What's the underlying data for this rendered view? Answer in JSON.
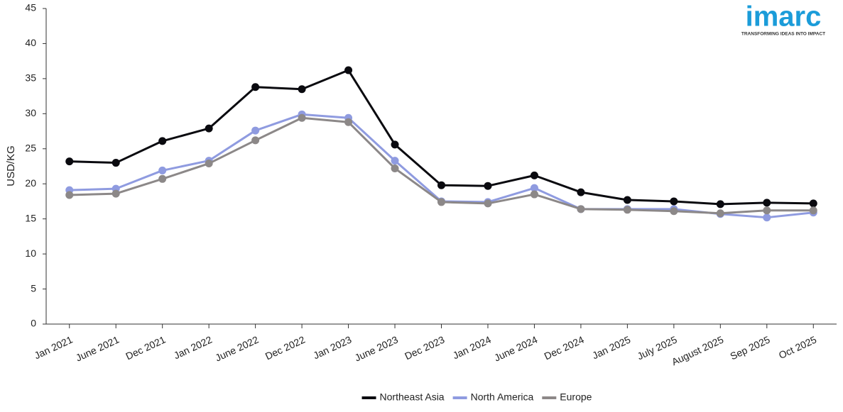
{
  "chart_data": {
    "type": "line",
    "y_label": "USD/KG",
    "logo": {
      "name": "imarc",
      "tagline": "TRANSFORMING IDEAS INTO IMPACT"
    },
    "categories": [
      "Jan 2021",
      "June 2021",
      "Dec 2021",
      "Jan 2022",
      "June 2022",
      "Dec 2022",
      "Jan 2023",
      "June 2023",
      "Dec 2023",
      "Jan 2024",
      "June 2024",
      "Dec 2024",
      "Jan 2025",
      "July 2025",
      "August 2025",
      "Sep 2025",
      "Oct 2025"
    ],
    "series": [
      {
        "name": "Northeast Asia",
        "color": "#0a0a0f",
        "values": [
          23.2,
          23.0,
          26.1,
          27.9,
          33.8,
          33.5,
          36.2,
          25.6,
          19.8,
          19.7,
          21.2,
          18.8,
          17.7,
          17.5,
          17.1,
          17.3,
          17.2
        ]
      },
      {
        "name": "North America",
        "color": "#8f9be0",
        "values": [
          19.1,
          19.3,
          21.9,
          23.3,
          27.6,
          29.9,
          29.4,
          23.3,
          17.5,
          17.4,
          19.4,
          16.4,
          16.4,
          16.4,
          15.7,
          15.2,
          15.9
        ]
      },
      {
        "name": "Europe",
        "color": "#8c8888",
        "values": [
          18.4,
          18.6,
          20.7,
          22.9,
          26.2,
          29.4,
          28.8,
          22.2,
          17.4,
          17.2,
          18.5,
          16.4,
          16.3,
          16.1,
          15.8,
          16.2,
          16.2
        ]
      }
    ],
    "ylim": [
      0,
      45
    ],
    "yticks": [
      0,
      5,
      10,
      15,
      20,
      25,
      30,
      35,
      40,
      45
    ],
    "grid": false,
    "legend": "bottom"
  }
}
